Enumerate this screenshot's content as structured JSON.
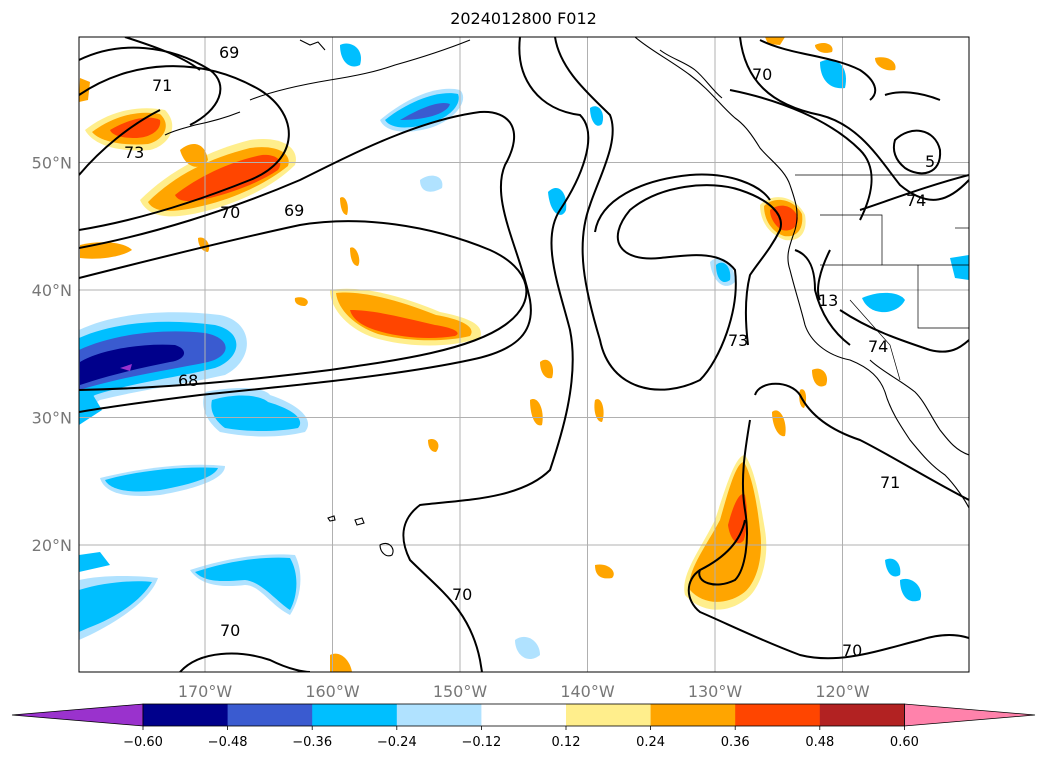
{
  "title": "2024012800 F012",
  "map": {
    "lat_labels": [
      {
        "lat": 50,
        "text": "50°N"
      },
      {
        "lat": 40,
        "text": "40°N"
      },
      {
        "lat": 30,
        "text": "30°N"
      },
      {
        "lat": 20,
        "text": "20°N"
      }
    ],
    "lon_labels": [
      {
        "lon": -170,
        "text": "170°W"
      },
      {
        "lon": -160,
        "text": "160°W"
      },
      {
        "lon": -150,
        "text": "150°W"
      },
      {
        "lon": -140,
        "text": "140°W"
      },
      {
        "lon": -130,
        "text": "130°W"
      },
      {
        "lon": -120,
        "text": "120°W"
      }
    ],
    "contour_labels": [
      "69",
      "71",
      "73",
      "70",
      "69",
      "68",
      "70",
      "70",
      "73",
      "13",
      "74",
      "74",
      "5",
      "71",
      "70",
      "70"
    ]
  },
  "colorbar": {
    "ticks": [
      "−0.60",
      "−0.48",
      "−0.36",
      "−0.24",
      "−0.12",
      "0.12",
      "0.24",
      "0.36",
      "0.48",
      "0.60"
    ],
    "colors": [
      "#9a32cd",
      "#00008b",
      "#3a5bd0",
      "#00bfff",
      "#b0e2ff",
      "#ffffff",
      "#ffee8c",
      "#ffa500",
      "#ff4500",
      "#b22222",
      "#ff82ab"
    ]
  }
}
